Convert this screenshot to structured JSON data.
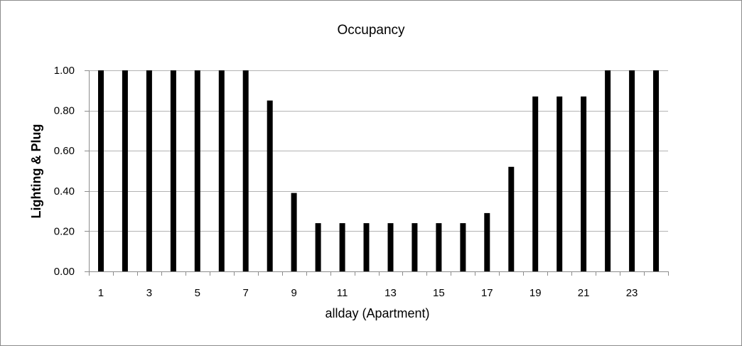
{
  "chart_data": {
    "type": "bar",
    "title": "Occupancy",
    "xlabel": "allday (Apartment)",
    "ylabel": "Lighting & Plug",
    "categories": [
      "1",
      "2",
      "3",
      "4",
      "5",
      "6",
      "7",
      "8",
      "9",
      "10",
      "11",
      "12",
      "13",
      "14",
      "15",
      "16",
      "17",
      "18",
      "19",
      "20",
      "21",
      "22",
      "23",
      "24"
    ],
    "x_tick_labels": [
      "1",
      "3",
      "5",
      "7",
      "9",
      "11",
      "13",
      "15",
      "17",
      "19",
      "21",
      "23"
    ],
    "y_tick_labels": [
      "0.00",
      "0.20",
      "0.40",
      "0.60",
      "0.80",
      "1.00"
    ],
    "values": [
      1.0,
      1.0,
      1.0,
      1.0,
      1.0,
      1.0,
      1.0,
      0.85,
      0.39,
      0.24,
      0.24,
      0.24,
      0.24,
      0.24,
      0.24,
      0.24,
      0.29,
      0.52,
      0.87,
      0.87,
      0.87,
      1.0,
      1.0,
      1.0
    ],
    "ylim": [
      0,
      1.0
    ],
    "y_ticks": [
      0,
      0.2,
      0.4,
      0.6,
      0.8,
      1.0
    ],
    "grid": "horizontal",
    "legend": "none",
    "bar_color": "#000000",
    "grid_color": "#b3b3b3"
  }
}
